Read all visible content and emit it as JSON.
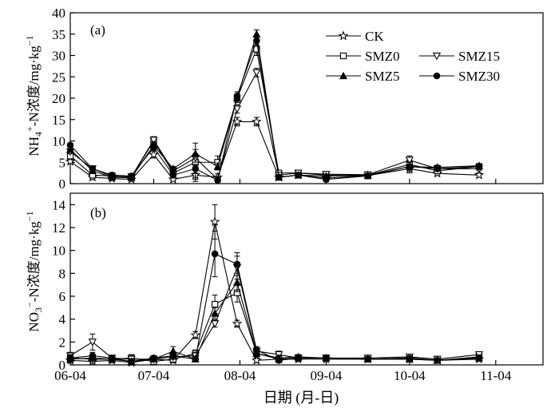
{
  "figure": {
    "xlabel": "日期 (月-日)",
    "xticks": [
      "06-04",
      "07-04",
      "08-04",
      "09-04",
      "10-04",
      "11-04"
    ],
    "legend": [
      "CK",
      "SMZ0",
      "SMZ15",
      "SMZ5",
      "SMZ30"
    ]
  },
  "chart_data": [
    {
      "type": "line",
      "panel": "(a)",
      "ylabel": "NH4+-N浓度/mg·kg−1",
      "ylim": [
        0,
        40
      ],
      "yticks": [
        0,
        5,
        10,
        15,
        20,
        25,
        30,
        35,
        40
      ],
      "x_ticks_dates": [
        "06-04",
        "07-04",
        "08-04",
        "09-04",
        "10-04",
        "11-04"
      ],
      "x_domain_days": [
        0,
        170
      ],
      "x_days": [
        0,
        8,
        15,
        22,
        30,
        37,
        45,
        53,
        60,
        67,
        75,
        82,
        92,
        107,
        122,
        132,
        147
      ],
      "series": [
        {
          "name": "CK",
          "marker": "star",
          "values": [
            5.2,
            1.5,
            1.2,
            1.0,
            6.8,
            1.0,
            2.0,
            1.5,
            14.5,
            14.5,
            1.5,
            2.0,
            1.3,
            1.9,
            3.5,
            2.4,
            2.0
          ],
          "errors": [
            0.5,
            0.5,
            0.3,
            0.3,
            0.8,
            0.3,
            1.0,
            0.8,
            1.0,
            1.0,
            0.5,
            0.5,
            0.3,
            0.3,
            1.0,
            0.5,
            0.5
          ]
        },
        {
          "name": "SMZ0",
          "marker": "square-open",
          "values": [
            6.5,
            2.0,
            1.8,
            1.5,
            10.0,
            2.5,
            5.0,
            5.0,
            20.0,
            31.5,
            2.5,
            2.5,
            2.0,
            2.0,
            4.5,
            3.0,
            4.0
          ],
          "errors": [
            0.5,
            0.5,
            0.3,
            0.3,
            0.8,
            0.5,
            4.5,
            1.5,
            1.0,
            1.5,
            0.5,
            0.5,
            0.3,
            0.3,
            1.0,
            0.5,
            0.5
          ]
        },
        {
          "name": "SMZ15",
          "marker": "triangle-down-open",
          "values": [
            7.5,
            3.5,
            1.7,
            1.6,
            10.2,
            3.0,
            6.0,
            1.0,
            17.5,
            26.0,
            2.0,
            2.5,
            2.2,
            2.1,
            5.5,
            3.5,
            3.5
          ],
          "errors": [
            0.5,
            0.5,
            0.3,
            0.3,
            0.8,
            0.5,
            1.0,
            0.5,
            1.0,
            1.0,
            0.5,
            0.5,
            0.3,
            0.3,
            1.0,
            0.5,
            0.5
          ]
        },
        {
          "name": "SMZ5",
          "marker": "triangle-up-filled",
          "values": [
            8.0,
            3.0,
            1.5,
            1.4,
            9.0,
            3.5,
            7.0,
            4.0,
            20.0,
            35.0,
            1.5,
            2.0,
            1.8,
            1.9,
            4.0,
            3.8,
            4.2
          ],
          "errors": [
            0.5,
            0.5,
            0.3,
            0.3,
            0.8,
            0.5,
            1.0,
            0.8,
            1.0,
            1.0,
            0.5,
            0.5,
            0.3,
            0.3,
            1.0,
            0.5,
            0.5
          ]
        },
        {
          "name": "SMZ30",
          "marker": "circle-filled",
          "values": [
            9.0,
            3.5,
            2.0,
            1.8,
            8.5,
            2.0,
            3.5,
            0.8,
            20.5,
            33.5,
            1.5,
            2.0,
            1.0,
            1.8,
            4.0,
            3.5,
            4.0
          ],
          "errors": [
            0.5,
            0.5,
            0.3,
            0.3,
            0.8,
            0.5,
            1.0,
            0.5,
            1.0,
            1.0,
            0.5,
            0.5,
            0.3,
            0.3,
            1.0,
            0.5,
            0.5
          ]
        }
      ]
    },
    {
      "type": "line",
      "panel": "(b)",
      "ylabel": "NO3−-N浓度/mg·kg−1",
      "ylim": [
        0,
        15
      ],
      "yticks": [
        0,
        2,
        4,
        6,
        8,
        10,
        12,
        14
      ],
      "x_ticks_dates": [
        "06-04",
        "07-04",
        "08-04",
        "09-04",
        "10-04",
        "11-04"
      ],
      "x_domain_days": [
        0,
        170
      ],
      "x_days": [
        0,
        8,
        15,
        22,
        30,
        37,
        45,
        52,
        60,
        67,
        75,
        82,
        92,
        107,
        122,
        132,
        147
      ],
      "series": [
        {
          "name": "CK",
          "marker": "star",
          "values": [
            0.4,
            0.3,
            0.4,
            0.2,
            0.5,
            0.4,
            2.6,
            12.5,
            3.6,
            0.4,
            0.5,
            0.5,
            0.5,
            0.5,
            0.5,
            0.4,
            0.5
          ],
          "errors": [
            0.2,
            0.2,
            0.2,
            0.1,
            0.2,
            0.2,
            0.3,
            1.5,
            0.3,
            0.2,
            0.2,
            0.2,
            0.1,
            0.1,
            0.1,
            0.1,
            0.1
          ]
        },
        {
          "name": "SMZ0",
          "marker": "square-open",
          "values": [
            0.6,
            0.5,
            0.5,
            0.6,
            0.3,
            0.5,
            1.0,
            5.3,
            6.3,
            1.0,
            0.5,
            0.6,
            0.6,
            0.5,
            0.6,
            0.4,
            0.7
          ],
          "errors": [
            0.3,
            0.2,
            0.2,
            0.3,
            0.2,
            0.2,
            0.3,
            0.8,
            0.8,
            0.3,
            0.2,
            0.2,
            0.1,
            0.1,
            0.1,
            0.1,
            0.2
          ]
        },
        {
          "name": "SMZ15",
          "marker": "triangle-down-open",
          "values": [
            0.8,
            2.0,
            0.6,
            0.5,
            0.5,
            0.7,
            0.8,
            3.6,
            8.5,
            1.2,
            0.9,
            0.6,
            0.6,
            0.6,
            0.7,
            0.5,
            0.9
          ],
          "errors": [
            0.3,
            0.7,
            0.2,
            0.2,
            0.2,
            0.2,
            0.3,
            0.3,
            1.0,
            0.3,
            0.3,
            0.2,
            0.1,
            0.1,
            0.1,
            0.1,
            0.2
          ]
        },
        {
          "name": "SMZ5",
          "marker": "triangle-up-filled",
          "values": [
            0.5,
            0.6,
            0.5,
            0.3,
            0.5,
            1.2,
            0.5,
            4.5,
            7.2,
            1.0,
            0.6,
            0.7,
            0.6,
            0.5,
            0.5,
            0.4,
            0.6
          ],
          "errors": [
            0.3,
            0.2,
            0.2,
            0.2,
            0.2,
            0.4,
            0.2,
            0.5,
            0.8,
            0.3,
            0.2,
            0.2,
            0.1,
            0.1,
            0.1,
            0.1,
            0.1
          ]
        },
        {
          "name": "SMZ30",
          "marker": "circle-filled",
          "values": [
            0.6,
            0.8,
            0.6,
            0.3,
            0.6,
            0.8,
            0.5,
            9.7,
            8.8,
            1.3,
            0.4,
            0.6,
            0.6,
            0.5,
            0.6,
            0.4,
            0.6
          ],
          "errors": [
            0.3,
            0.3,
            0.2,
            0.2,
            0.2,
            0.3,
            0.2,
            2.0,
            1.0,
            0.3,
            0.2,
            0.2,
            0.1,
            0.1,
            0.1,
            0.1,
            0.1
          ]
        }
      ]
    }
  ]
}
